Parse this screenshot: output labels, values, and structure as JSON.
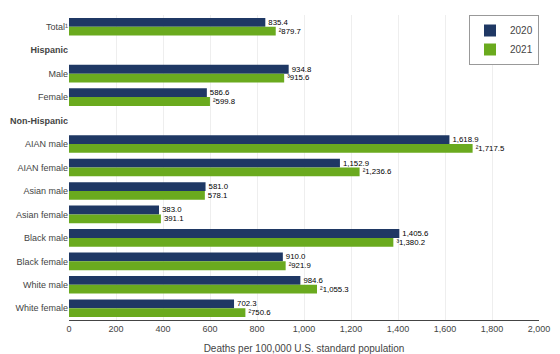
{
  "chart_data": {
    "type": "bar",
    "orientation": "horizontal",
    "categories": [
      "Total¹",
      "Hispanic",
      "Male",
      "Female",
      "Non-Hispanic",
      "AIAN male",
      "AIAN female",
      "Asian male",
      "Asian female",
      "Black male",
      "Black female",
      "White male",
      "White female"
    ],
    "series": [
      {
        "name": "2020",
        "color": "#1f3864",
        "values": [
          835.4,
          null,
          934.8,
          586.6,
          null,
          1618.9,
          1152.9,
          581.0,
          383.0,
          1405.6,
          910.0,
          984.6,
          702.3
        ],
        "value_labels": [
          "835.4",
          null,
          "934.8",
          "586.6",
          null,
          "1,618.9",
          "1,152.9",
          "581.0",
          "383.0",
          "1,405.6",
          "910.0",
          "984.6",
          "702.3"
        ]
      },
      {
        "name": "2021",
        "color": "#6aaa1e",
        "values": [
          879.7,
          null,
          915.6,
          599.8,
          null,
          1717.5,
          1236.6,
          578.1,
          391.1,
          1380.2,
          921.9,
          1055.3,
          750.6
        ],
        "value_labels": [
          "²879.7",
          null,
          "³915.6",
          "²599.8",
          null,
          "²1,717.5",
          "²1,236.6",
          "578.1",
          "391.1",
          "³1,380.2",
          "²921.9",
          "²1,055.3",
          "²750.6"
        ]
      }
    ],
    "xlabel": "Deaths per 100,000 U.S. standard population",
    "xlim": [
      0,
      2000
    ],
    "xticks": [
      0,
      200,
      400,
      600,
      800,
      {
        "value": 1000,
        "label": "1,000"
      },
      {
        "value": 1200,
        "label": "1,200"
      },
      {
        "value": 1400,
        "label": "1,400"
      },
      {
        "value": 1600,
        "label": "1,600"
      },
      {
        "value": 1800,
        "label": "1,800"
      },
      {
        "value": 2000,
        "label": "2,000"
      }
    ],
    "grid": true,
    "legend": "upper right",
    "data_labels": true
  }
}
